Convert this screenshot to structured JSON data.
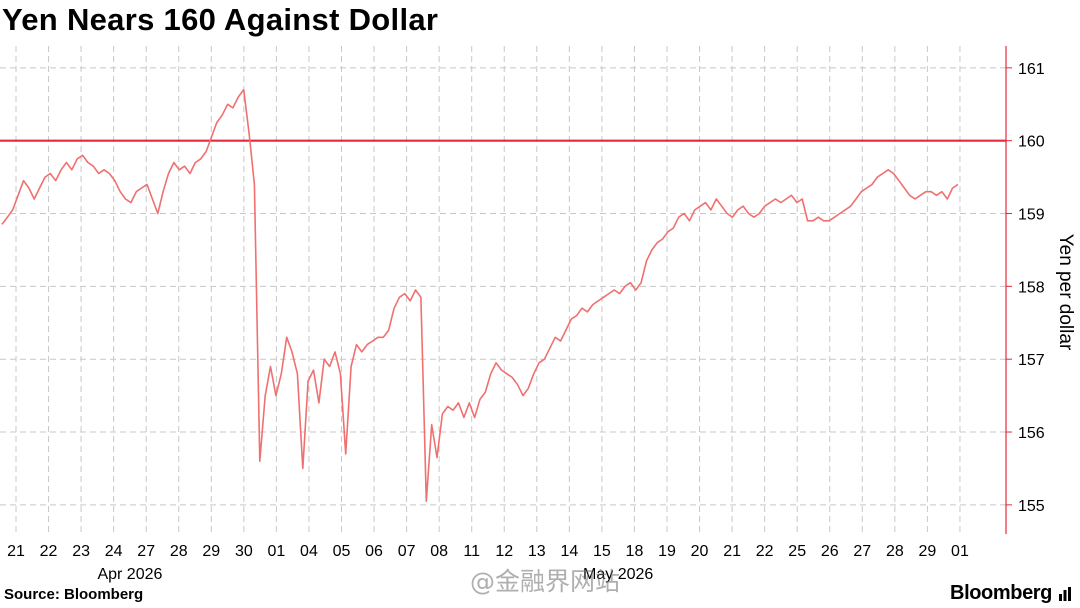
{
  "title": "Yen Nears 160 Against Dollar",
  "source": "Source: Bloomberg",
  "brand": "Bloomberg",
  "watermark": "@金融界网站",
  "colors": {
    "line": "#f07070",
    "threshold": "#e8283c",
    "axis": "#e8283c",
    "grid": "#c8c8c8"
  },
  "chart_data": {
    "type": "line",
    "title": "Yen Nears 160 Against Dollar",
    "ylabel": "Yen per dollar",
    "xlabel": "",
    "ylim": [
      154.6,
      161.3
    ],
    "yticks": [
      155,
      156,
      157,
      158,
      159,
      160,
      161
    ],
    "grid": true,
    "y_axis_position": "right",
    "x_ticks": [
      "21",
      "22",
      "23",
      "24",
      "27",
      "28",
      "29",
      "30",
      "01",
      "04",
      "05",
      "06",
      "07",
      "08",
      "11",
      "12",
      "13",
      "14",
      "15",
      "18",
      "19",
      "20",
      "21",
      "22",
      "25",
      "26",
      "27",
      "28",
      "29",
      "01"
    ],
    "x_group_labels": [
      {
        "label": "Apr 2026",
        "under_tick": 3
      },
      {
        "label": "May 2026",
        "under_tick": 18
      }
    ],
    "reference_line": {
      "y": 160
    },
    "series": [
      {
        "values": [
          158.85,
          158.95,
          159.05,
          159.25,
          159.45,
          159.35,
          159.2,
          159.35,
          159.5,
          159.55,
          159.45,
          159.6,
          159.7,
          159.6,
          159.75,
          159.8,
          159.7,
          159.65,
          159.55,
          159.6,
          159.55,
          159.45,
          159.3,
          159.2,
          159.15,
          159.3,
          159.35,
          159.4,
          159.2,
          159.0,
          159.3,
          159.55,
          159.7,
          159.6,
          159.65,
          159.55,
          159.7,
          159.75,
          159.85,
          160.05,
          160.25,
          160.35,
          160.5,
          160.45,
          160.6,
          160.7,
          160.1,
          159.4,
          155.6,
          156.5,
          156.9,
          156.5,
          156.8,
          157.3,
          157.1,
          156.8,
          155.5,
          156.7,
          156.85,
          156.4,
          157.0,
          156.9,
          157.1,
          156.8,
          155.7,
          156.9,
          157.2,
          157.1,
          157.2,
          157.25,
          157.3,
          157.3,
          157.4,
          157.7,
          157.85,
          157.9,
          157.8,
          157.95,
          157.85,
          155.05,
          156.1,
          155.65,
          156.25,
          156.35,
          156.3,
          156.4,
          156.2,
          156.4,
          156.2,
          156.45,
          156.55,
          156.8,
          156.95,
          156.85,
          156.8,
          156.75,
          156.65,
          156.5,
          156.6,
          156.8,
          156.95,
          157.0,
          157.15,
          157.3,
          157.25,
          157.4,
          157.55,
          157.6,
          157.7,
          157.65,
          157.75,
          157.8,
          157.85,
          157.9,
          157.95,
          157.9,
          158.0,
          158.05,
          157.95,
          158.05,
          158.35,
          158.5,
          158.6,
          158.65,
          158.75,
          158.8,
          158.95,
          159.0,
          158.9,
          159.05,
          159.1,
          159.15,
          159.05,
          159.2,
          159.1,
          159.0,
          158.95,
          159.05,
          159.1,
          159.0,
          158.95,
          159.0,
          159.1,
          159.15,
          159.2,
          159.15,
          159.2,
          159.25,
          159.15,
          159.2,
          158.9,
          158.9,
          158.95,
          158.9,
          158.9,
          158.95,
          159.0,
          159.05,
          159.1,
          159.2,
          159.3,
          159.35,
          159.4,
          159.5,
          159.55,
          159.6,
          159.55,
          159.45,
          159.35,
          159.25,
          159.2,
          159.25,
          159.3,
          159.3,
          159.25,
          159.3,
          159.2,
          159.35,
          159.4
        ]
      }
    ]
  }
}
